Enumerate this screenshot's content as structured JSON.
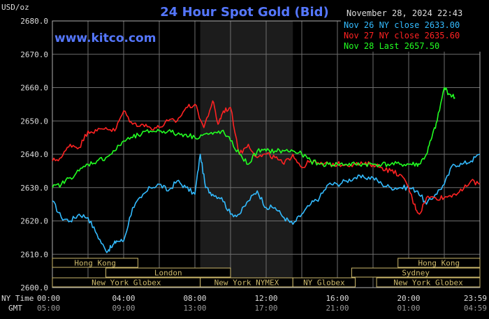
{
  "chart_data": {
    "type": "line",
    "title": "24 Hour Spot Gold (Bid)",
    "unit_label": "USD/oz",
    "watermark": "www.kitco.com",
    "timestamp": "November 28, 2024 22:43",
    "ylim": [
      2600,
      2680
    ],
    "y_ticks": [
      "2680.0",
      "2670.0",
      "2660.0",
      "2650.0",
      "2640.0",
      "2630.0",
      "2620.0",
      "2610.0",
      "2600.0"
    ],
    "x_ticks_ny": [
      "00:00",
      "04:00",
      "08:00",
      "12:00",
      "16:00",
      "20:00",
      "23:59"
    ],
    "x_ticks_gmt": [
      "05:00",
      "09:00",
      "13:00",
      "17:00",
      "21:00",
      "01:00",
      "04:59"
    ],
    "row_labels": {
      "ny": "NY Time",
      "gmt": "GMT"
    },
    "grid": true,
    "legend": [
      {
        "label": "Nov 26 NY close 2633.00",
        "color": "#33bbff"
      },
      {
        "label": "Nov 27 NY close 2635.60",
        "color": "#ff2222"
      },
      {
        "label": "Nov 28 Last 2657.50",
        "color": "#22ff22"
      }
    ],
    "sessions": {
      "hong_kong": "Hong Kong",
      "london": "London",
      "new_york_globex": "New York Globex",
      "new_york_nymex": "New York NYMEX",
      "ny_globex": "NY Globex",
      "hong_kong_2": "Hong Kong",
      "sydney": "Sydney",
      "new_york_globex_2": "New York Globex"
    },
    "series": [
      {
        "name": "Nov 26",
        "color": "#33bbff",
        "x": [
          0,
          0.5,
          1,
          1.5,
          2,
          2.5,
          3,
          3.3,
          3.6,
          4,
          4.5,
          5,
          5.5,
          6,
          6.5,
          7,
          7.5,
          8,
          8.3,
          8.6,
          9,
          9.5,
          10,
          10.5,
          11,
          11.5,
          12,
          12.5,
          13,
          13.5,
          14,
          14.5,
          15,
          15.5,
          16,
          16.5,
          17,
          17.5,
          18,
          18.5,
          19,
          19.5,
          20,
          20.5,
          21,
          21.5,
          22,
          22.5,
          23,
          23.5,
          24
        ],
        "values": [
          2626,
          2621,
          2620,
          2622,
          2621,
          2616,
          2611,
          2612,
          2614,
          2614,
          2624,
          2627,
          2630,
          2631,
          2629,
          2632,
          2630,
          2628,
          2640,
          2630,
          2628,
          2627,
          2622,
          2622,
          2626,
          2629,
          2624,
          2624,
          2621,
          2619,
          2622,
          2625,
          2627,
          2631,
          2631,
          2632,
          2633,
          2633,
          2633,
          2631,
          2630,
          2630,
          2630,
          2629,
          2625,
          2628,
          2631,
          2637,
          2637,
          2638,
          2640
        ]
      },
      {
        "name": "Nov 27",
        "color": "#ff2222",
        "x": [
          0,
          0.5,
          1,
          1.5,
          2,
          2.5,
          3,
          3.5,
          4,
          4.5,
          5,
          5.5,
          6,
          6.5,
          7,
          7.5,
          8,
          8.5,
          9,
          9.3,
          9.6,
          10,
          10.5,
          11,
          11.5,
          12,
          12.5,
          13,
          13.5,
          14,
          14.5,
          15,
          15.5,
          16,
          16.5,
          17,
          17.5,
          18,
          18.5,
          19,
          19.5,
          20,
          20.3,
          20.6,
          21,
          21.5,
          22,
          22.5,
          23,
          23.5,
          24
        ],
        "values": [
          2638,
          2639,
          2643,
          2642,
          2647,
          2647,
          2648,
          2647,
          2653,
          2649,
          2649,
          2648,
          2648,
          2650,
          2650,
          2654,
          2655,
          2648,
          2656,
          2649,
          2653,
          2654,
          2640,
          2643,
          2639,
          2640,
          2639,
          2637,
          2640,
          2636,
          2638,
          2637,
          2637,
          2637,
          2637,
          2637,
          2637,
          2637,
          2636,
          2635,
          2634,
          2630,
          2625,
          2622,
          2627,
          2627,
          2627,
          2628,
          2629,
          2632,
          2631
        ]
      },
      {
        "name": "Nov 28",
        "color": "#22ff22",
        "x": [
          0,
          0.5,
          1,
          1.5,
          2,
          2.5,
          3,
          3.5,
          4,
          4.5,
          5,
          5.5,
          6,
          6.5,
          7,
          7.5,
          8,
          8.5,
          9,
          9.5,
          10,
          10.5,
          11,
          11.5,
          12,
          12.5,
          13,
          13.5,
          14,
          14.5,
          15,
          15.5,
          16,
          16.5,
          17,
          17.5,
          18,
          18.5,
          19,
          19.5,
          20,
          20.3,
          20.6,
          21,
          21.3,
          21.6,
          22,
          22.3,
          22.6
        ],
        "values": [
          2630,
          2631,
          2633,
          2635,
          2637,
          2638,
          2639,
          2641,
          2644,
          2645,
          2646,
          2647,
          2647,
          2647,
          2646,
          2646,
          2645,
          2646,
          2646,
          2647,
          2644,
          2640,
          2637,
          2641,
          2641,
          2641,
          2641,
          2641,
          2640,
          2638,
          2637,
          2637,
          2637,
          2637,
          2637,
          2637,
          2637,
          2637,
          2637,
          2637,
          2637,
          2637,
          2637,
          2640,
          2645,
          2650,
          2660,
          2658,
          2657
        ]
      }
    ]
  }
}
